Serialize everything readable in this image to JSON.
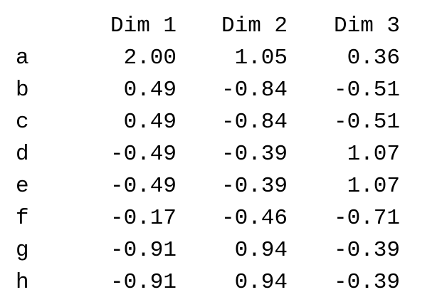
{
  "table": {
    "columns": [
      "Dim 1",
      "Dim 2",
      "Dim 3"
    ],
    "rows": [
      {
        "label": "a",
        "values": [
          "2.00",
          "1.05",
          "0.36"
        ]
      },
      {
        "label": "b",
        "values": [
          "0.49",
          "-0.84",
          "-0.51"
        ]
      },
      {
        "label": "c",
        "values": [
          "0.49",
          "-0.84",
          "-0.51"
        ]
      },
      {
        "label": "d",
        "values": [
          "-0.49",
          "-0.39",
          "1.07"
        ]
      },
      {
        "label": "e",
        "values": [
          "-0.49",
          "-0.39",
          "1.07"
        ]
      },
      {
        "label": "f",
        "values": [
          "-0.17",
          "-0.46",
          "-0.71"
        ]
      },
      {
        "label": "g",
        "values": [
          "-0.91",
          "0.94",
          "-0.39"
        ]
      },
      {
        "label": "h",
        "values": [
          "-0.91",
          "0.94",
          "-0.39"
        ]
      }
    ]
  }
}
